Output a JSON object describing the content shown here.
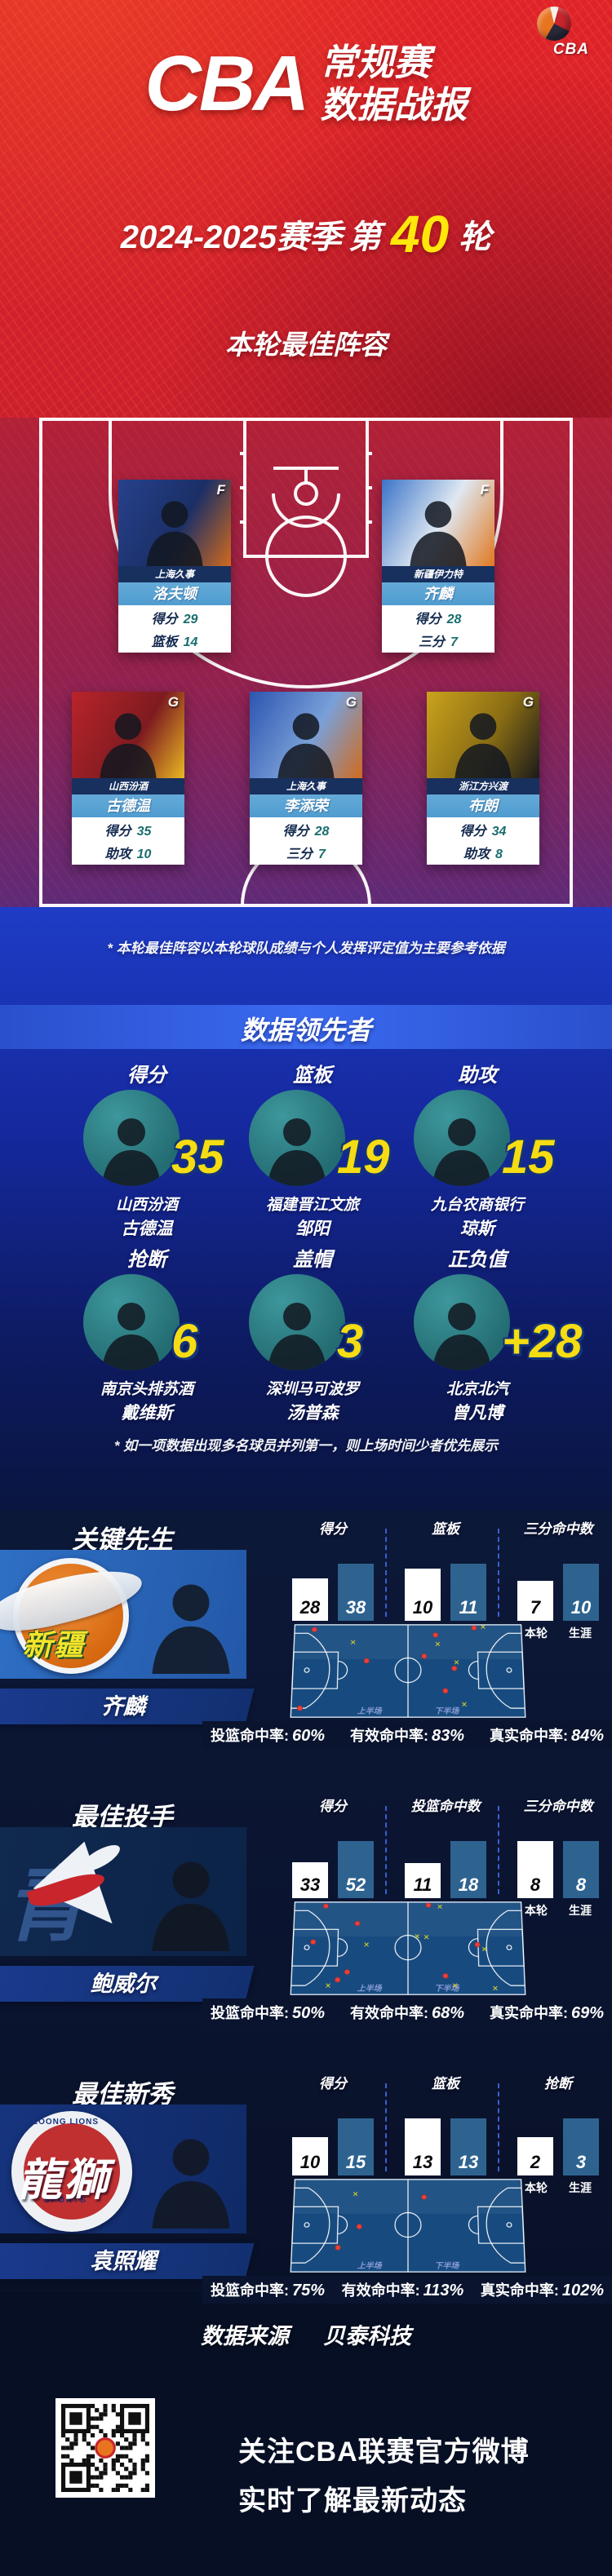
{
  "header": {
    "logo_text": "CBA",
    "title_cba": "CBA",
    "title_line1": "常规赛",
    "title_line2": "数据战报",
    "season": "2024-2025赛季",
    "round_prefix": "第",
    "round_number": "40",
    "round_suffix": "轮"
  },
  "lineup": {
    "title": "本轮最佳阵容",
    "note": "* 本轮最佳阵容以本轮球队成绩与个人发挥评定值为主要参考依据",
    "players": [
      {
        "position": "F",
        "team": "上海久事",
        "name": "洛夫顿",
        "stat1_label": "得分",
        "stat1_value": "29",
        "stat2_label": "篮板",
        "stat2_value": "14"
      },
      {
        "position": "F",
        "team": "新疆伊力特",
        "name": "齐麟",
        "stat1_label": "得分",
        "stat1_value": "28",
        "stat2_label": "三分",
        "stat2_value": "7"
      },
      {
        "position": "G",
        "team": "山西汾酒",
        "name": "古德温",
        "stat1_label": "得分",
        "stat1_value": "35",
        "stat2_label": "助攻",
        "stat2_value": "10"
      },
      {
        "position": "G",
        "team": "上海久事",
        "name": "李添荣",
        "stat1_label": "得分",
        "stat1_value": "28",
        "stat2_label": "三分",
        "stat2_value": "7"
      },
      {
        "position": "G",
        "team": "浙江方兴渡",
        "name": "布朗",
        "stat1_label": "得分",
        "stat1_value": "34",
        "stat2_label": "助攻",
        "stat2_value": "8"
      }
    ]
  },
  "leaders": {
    "title": "数据领先者",
    "note": "* 如一项数据出现多名球员并列第一，则上场时间少者优先展示",
    "items": [
      {
        "category": "得分",
        "value": "35",
        "team": "山西汾酒",
        "name": "古德温"
      },
      {
        "category": "篮板",
        "value": "19",
        "team": "福建晋江文旅",
        "name": "邹阳"
      },
      {
        "category": "助攻",
        "value": "15",
        "team": "九台农商银行",
        "name": "琼斯"
      },
      {
        "category": "抢断",
        "value": "6",
        "team": "南京头排苏酒",
        "name": "戴维斯"
      },
      {
        "category": "盖帽",
        "value": "3",
        "team": "深圳马可波罗",
        "name": "汤普森"
      },
      {
        "category": "正负值",
        "value": "+28",
        "team": "北京北汽",
        "name": "曾凡博"
      }
    ]
  },
  "shared": {
    "round_label": "本轮",
    "career_label": "生涯",
    "half1_label": "上半场",
    "half2_label": "下半场"
  },
  "spotlights": [
    {
      "title": "关键先生",
      "name": "齐麟",
      "logo": {
        "style": "xinjiang",
        "text": "新疆"
      },
      "stats": [
        {
          "label": "得分",
          "round": 28,
          "career": 38
        },
        {
          "label": "篮板",
          "round": 10,
          "career": 11
        },
        {
          "label": "三分命中数",
          "round": 7,
          "career": 10
        }
      ],
      "rates": [
        {
          "label": "投篮命中率:",
          "value": "60%"
        },
        {
          "label": "有效命中率:",
          "value": "83%"
        },
        {
          "label": "真实命中率:",
          "value": "84%"
        }
      ],
      "shots": {
        "made": [
          [
            0.09,
            0.06
          ],
          [
            0.32,
            0.4
          ],
          [
            0.04,
            0.9
          ],
          [
            0.62,
            0.12
          ],
          [
            0.57,
            0.35
          ],
          [
            0.7,
            0.48
          ],
          [
            0.66,
            0.72
          ],
          [
            0.79,
            0.04
          ]
        ],
        "missed": [
          [
            0.26,
            0.2
          ],
          [
            0.63,
            0.22
          ],
          [
            0.83,
            0.03
          ],
          [
            0.71,
            0.42
          ],
          [
            0.74,
            0.86
          ]
        ]
      }
    },
    {
      "title": "最佳投手",
      "name": "鲍威尔",
      "logo": {
        "style": "qingdao",
        "text": "青"
      },
      "stats": [
        {
          "label": "得分",
          "round": 33,
          "career": 52
        },
        {
          "label": "投篮命中数",
          "round": 11,
          "career": 18
        },
        {
          "label": "三分命中数",
          "round": 8,
          "career": 8
        }
      ],
      "rates": [
        {
          "label": "投篮命中率:",
          "value": "50%"
        },
        {
          "label": "有效命中率:",
          "value": "68%"
        },
        {
          "label": "真实命中率:",
          "value": "69%"
        }
      ],
      "shots": {
        "made": [
          [
            0.14,
            0.05
          ],
          [
            0.28,
            0.24
          ],
          [
            0.09,
            0.44
          ],
          [
            0.24,
            0.76
          ],
          [
            0.2,
            0.84
          ],
          [
            0.59,
            0.04
          ],
          [
            0.8,
            0.47
          ],
          [
            0.66,
            0.8
          ]
        ],
        "missed": [
          [
            0.32,
            0.47
          ],
          [
            0.16,
            0.9
          ],
          [
            0.54,
            0.38
          ],
          [
            0.58,
            0.39
          ],
          [
            0.64,
            0.06
          ],
          [
            0.83,
            0.52
          ],
          [
            0.7,
            0.9
          ],
          [
            0.87,
            0.93
          ]
        ]
      }
    },
    {
      "title": "最佳新秀",
      "name": "袁照耀",
      "logo": {
        "style": "loong",
        "text": "龍獅",
        "ring_top": "LOONG LIONS",
        "ring_bottom": "SPORTS"
      },
      "stats": [
        {
          "label": "得分",
          "round": 10,
          "career": 15
        },
        {
          "label": "篮板",
          "round": 13,
          "career": 13
        },
        {
          "label": "抢断",
          "round": 2,
          "career": 3
        }
      ],
      "rates": [
        {
          "label": "投篮命中率:",
          "value": "75%"
        },
        {
          "label": "有效命中率:",
          "value": "113%"
        },
        {
          "label": "真实命中率:",
          "value": "102%"
        }
      ],
      "shots": {
        "made": [
          [
            0.29,
            0.52
          ],
          [
            0.2,
            0.74
          ],
          [
            0.57,
            0.2
          ]
        ],
        "missed": [
          [
            0.27,
            0.17
          ]
        ]
      }
    }
  ],
  "footer": {
    "source_label": "数据来源",
    "source_name": "贝泰科技",
    "qr_line1": "关注CBA联赛官方微博",
    "qr_line2": "实时了解最新动态"
  },
  "colors": {
    "header_red": "#d9212a",
    "accent_yellow": "#f6dc12",
    "stat_teal": "#1a6e6e",
    "bar_career_blue": "#2e6390",
    "court_blue": "#174b80",
    "made_red": "#e8403a",
    "missed_yellow": "#e5d822"
  },
  "chart_data": [
    {
      "type": "bar",
      "title": "关键先生 齐麟",
      "categories": [
        "得分",
        "篮板",
        "三分命中数"
      ],
      "series": [
        {
          "name": "本轮",
          "values": [
            28,
            10,
            7
          ]
        },
        {
          "name": "生涯",
          "values": [
            38,
            11,
            10
          ]
        }
      ],
      "legend_position": "below-bars",
      "grid": false
    },
    {
      "type": "bar",
      "title": "最佳投手 鲍威尔",
      "categories": [
        "得分",
        "投篮命中数",
        "三分命中数"
      ],
      "series": [
        {
          "name": "本轮",
          "values": [
            33,
            11,
            8
          ]
        },
        {
          "name": "生涯",
          "values": [
            52,
            18,
            8
          ]
        }
      ],
      "legend_position": "below-bars",
      "grid": false
    },
    {
      "type": "bar",
      "title": "最佳新秀 袁照耀",
      "categories": [
        "得分",
        "篮板",
        "抢断"
      ],
      "series": [
        {
          "name": "本轮",
          "values": [
            10,
            13,
            2
          ]
        },
        {
          "name": "生涯",
          "values": [
            15,
            13,
            3
          ]
        }
      ],
      "legend_position": "below-bars",
      "grid": false
    },
    {
      "type": "scatter",
      "title": "数据领先者",
      "categories": [
        "得分",
        "篮板",
        "助攻",
        "抢断",
        "盖帽",
        "正负值"
      ],
      "values": [
        35,
        19,
        15,
        6,
        3,
        28
      ],
      "grid": false
    }
  ]
}
